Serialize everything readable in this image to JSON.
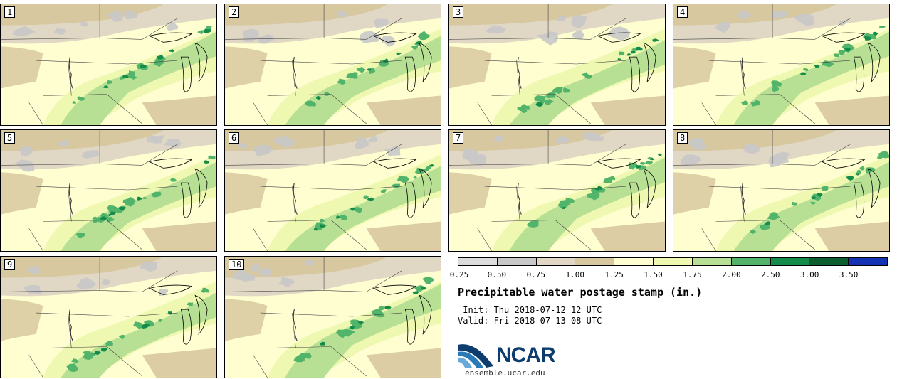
{
  "stamps": [
    {
      "label": "1",
      "variant": 0
    },
    {
      "label": "2",
      "variant": 1
    },
    {
      "label": "3",
      "variant": 2
    },
    {
      "label": "4",
      "variant": 3
    },
    {
      "label": "5",
      "variant": 4
    },
    {
      "label": "6",
      "variant": 5
    },
    {
      "label": "7",
      "variant": 6
    },
    {
      "label": "8",
      "variant": 7
    },
    {
      "label": "9",
      "variant": 8
    },
    {
      "label": "10",
      "variant": 9
    }
  ],
  "colorbar": {
    "ticks": [
      "0.25",
      "0.50",
      "0.75",
      "1.00",
      "1.25",
      "1.50",
      "1.75",
      "2.00",
      "2.50",
      "3.00",
      "3.50"
    ],
    "colors": [
      "#dcdcdc",
      "#c8c8c8",
      "#e0d8c4",
      "#d8c8a0",
      "#fefed0",
      "#eef8b0",
      "#b8e094",
      "#52b46a",
      "#138c4a",
      "#0c5e30",
      "#1432b4"
    ]
  },
  "title": "Precipitable water postage stamp (in.)",
  "init": " Init: Thu 2018-07-12 12 UTC",
  "valid": "Valid: Fri 2018-07-13 08 UTC",
  "logo": {
    "name": "NCAR",
    "url": "ensemble.ucar.edu"
  }
}
